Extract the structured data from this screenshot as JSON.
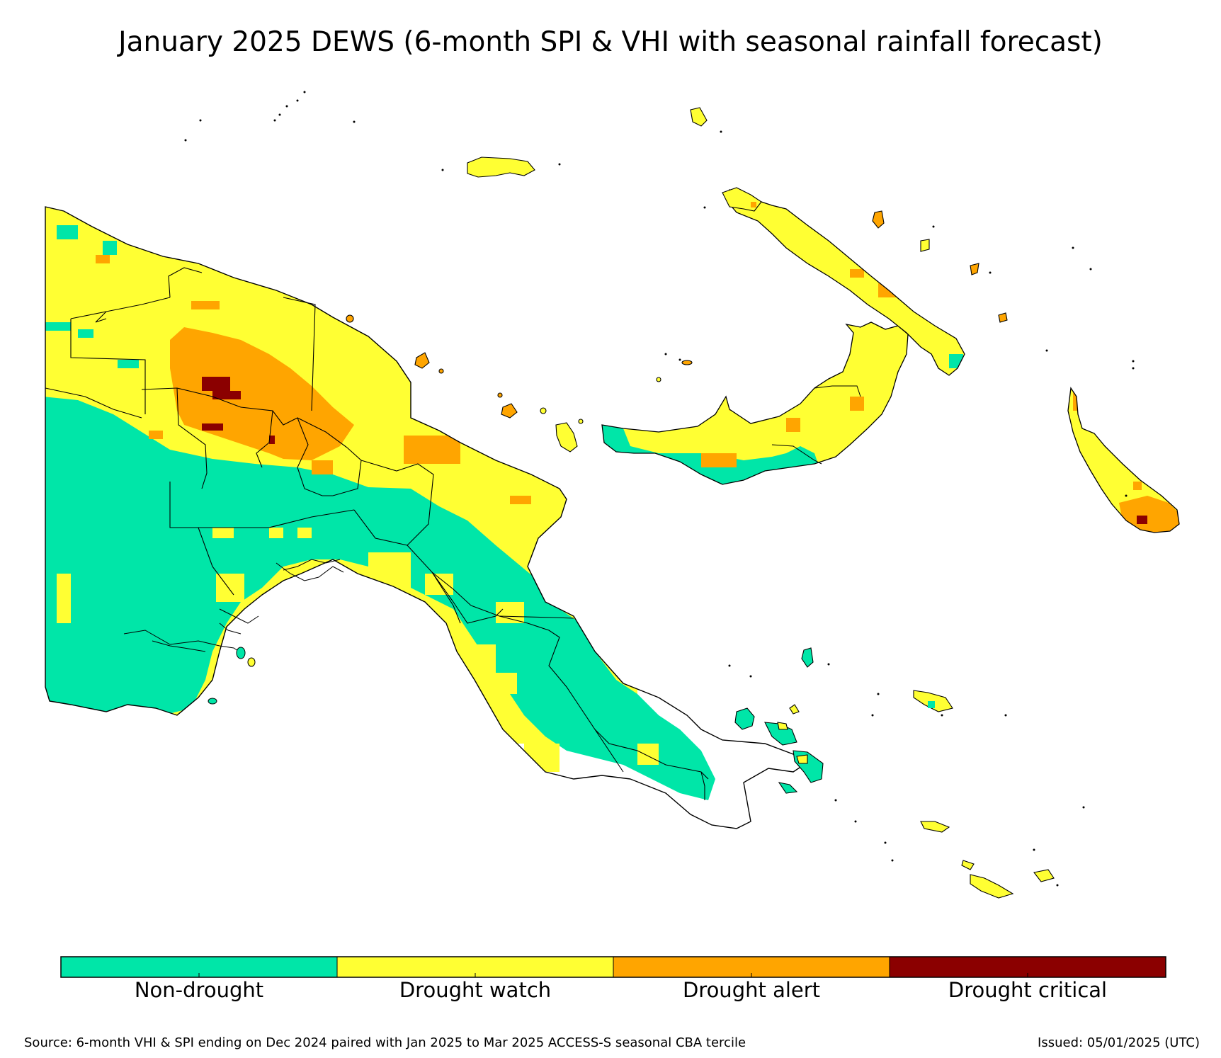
{
  "title": "January 2025 DEWS (6-month SPI & VHI with seasonal rainfall forecast)",
  "legend": [
    {
      "label": "Non-drought",
      "color": "#00e6a8"
    },
    {
      "label": "Drought watch",
      "color": "#ffff33"
    },
    {
      "label": "Drought alert",
      "color": "#ffa500"
    },
    {
      "label": "Drought critical",
      "color": "#8b0000"
    }
  ],
  "source_note": "Source: 6-month VHI & SPI ending on Dec 2024 paired with Jan 2025 to Mar 2025 ACCESS-S seasonal CBA tercile",
  "issued_note": "Issued: 05/01/2025 (UTC)",
  "colors": {
    "non_drought": "#00e6a8",
    "drought_watch": "#ffff33",
    "drought_alert": "#ffa500",
    "drought_critical": "#8b0000",
    "outline": "#000000"
  }
}
